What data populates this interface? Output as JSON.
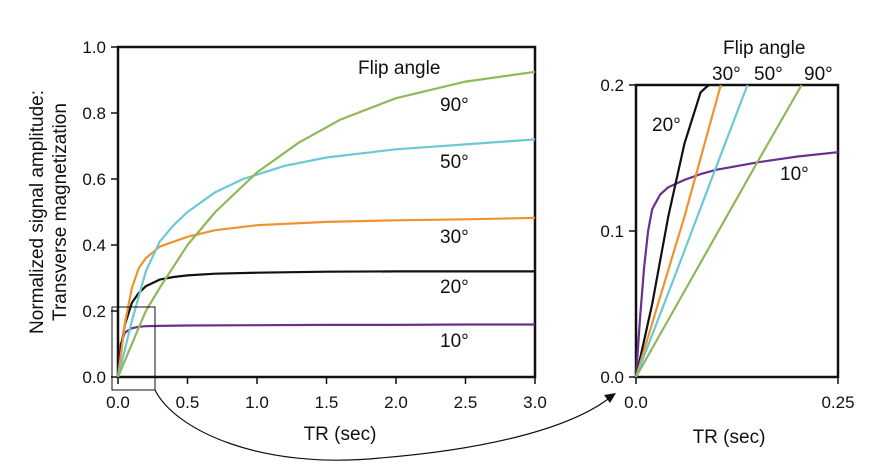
{
  "chart_data": [
    {
      "type": "line",
      "xlabel": "TR  (sec)",
      "ylabel_lines": [
        "Normalized signal amplitude:",
        "Transverse magnetization"
      ],
      "legend_title": "Flip angle",
      "xlim": [
        0,
        3.0
      ],
      "ylim": [
        0,
        1.0
      ],
      "xticks": [
        "0.0",
        "0.5",
        "1.0",
        "1.5",
        "2.0",
        "2.5",
        "3.0"
      ],
      "yticks": [
        "0.0",
        "0.2",
        "0.4",
        "0.6",
        "0.8",
        "1.0"
      ],
      "grid": false,
      "series": [
        {
          "name": "10°",
          "color": "#6a2f8f",
          "x": [
            0,
            0.02,
            0.05,
            0.1,
            0.15,
            0.2,
            0.3,
            0.5,
            1.0,
            1.5,
            2.0,
            2.5,
            3.0
          ],
          "y": [
            0,
            0.1,
            0.135,
            0.148,
            0.152,
            0.154,
            0.155,
            0.156,
            0.157,
            0.158,
            0.158,
            0.159,
            0.159
          ]
        },
        {
          "name": "20°",
          "color": "#111111",
          "x": [
            0,
            0.025,
            0.05,
            0.1,
            0.15,
            0.2,
            0.3,
            0.4,
            0.5,
            0.7,
            1.0,
            1.5,
            2.0,
            2.5,
            3.0
          ],
          "y": [
            0,
            0.1,
            0.16,
            0.225,
            0.255,
            0.275,
            0.295,
            0.303,
            0.308,
            0.313,
            0.316,
            0.319,
            0.32,
            0.32,
            0.32
          ]
        },
        {
          "name": "30°",
          "color": "#f0922e",
          "x": [
            0,
            0.05,
            0.1,
            0.15,
            0.2,
            0.3,
            0.4,
            0.5,
            0.7,
            1.0,
            1.5,
            2.0,
            2.5,
            3.0
          ],
          "y": [
            0,
            0.165,
            0.27,
            0.33,
            0.36,
            0.395,
            0.41,
            0.425,
            0.445,
            0.46,
            0.47,
            0.475,
            0.478,
            0.482
          ]
        },
        {
          "name": "50°",
          "color": "#6cc8d6",
          "x": [
            0,
            0.1,
            0.2,
            0.3,
            0.4,
            0.5,
            0.7,
            0.9,
            1.2,
            1.5,
            2.0,
            2.5,
            3.0
          ],
          "y": [
            0,
            0.17,
            0.32,
            0.41,
            0.46,
            0.5,
            0.56,
            0.6,
            0.64,
            0.665,
            0.69,
            0.705,
            0.72
          ]
        },
        {
          "name": "90°",
          "color": "#8fb85a",
          "x": [
            0,
            0.1,
            0.2,
            0.3,
            0.5,
            0.7,
            1.0,
            1.3,
            1.6,
            2.0,
            2.5,
            3.0
          ],
          "y": [
            0,
            0.1,
            0.2,
            0.27,
            0.4,
            0.5,
            0.62,
            0.71,
            0.78,
            0.845,
            0.895,
            0.925
          ]
        }
      ]
    },
    {
      "type": "line",
      "xlabel": "TR  (sec)",
      "legend_title": "Flip angle",
      "xlim": [
        0,
        0.25
      ],
      "ylim": [
        0,
        0.2
      ],
      "xticks": [
        "0.0",
        "0.25"
      ],
      "yticks": [
        "0.0",
        "0.1",
        "0.2"
      ],
      "grid": false,
      "series": [
        {
          "name": "10°",
          "color": "#6a2f8f",
          "x": [
            0,
            0.005,
            0.01,
            0.015,
            0.02,
            0.03,
            0.04,
            0.06,
            0.08,
            0.1,
            0.15,
            0.2,
            0.25
          ],
          "y": [
            0,
            0.04,
            0.075,
            0.1,
            0.115,
            0.125,
            0.13,
            0.135,
            0.139,
            0.142,
            0.147,
            0.151,
            0.154
          ]
        },
        {
          "name": "20°",
          "color": "#111111",
          "x": [
            0,
            0.02,
            0.04,
            0.06,
            0.08,
            0.09
          ],
          "y": [
            0,
            0.05,
            0.11,
            0.16,
            0.195,
            0.2
          ]
        },
        {
          "name": "30°",
          "color": "#f0922e",
          "x": [
            0,
            0.03,
            0.06,
            0.09,
            0.105
          ],
          "y": [
            0,
            0.055,
            0.11,
            0.17,
            0.2
          ]
        },
        {
          "name": "50°",
          "color": "#6cc8d6",
          "x": [
            0,
            0.05,
            0.1,
            0.138
          ],
          "y": [
            0,
            0.072,
            0.145,
            0.2
          ]
        },
        {
          "name": "90°",
          "color": "#8fb85a",
          "x": [
            0,
            0.05,
            0.1,
            0.15,
            0.205
          ],
          "y": [
            0,
            0.049,
            0.098,
            0.147,
            0.2
          ]
        }
      ]
    }
  ]
}
